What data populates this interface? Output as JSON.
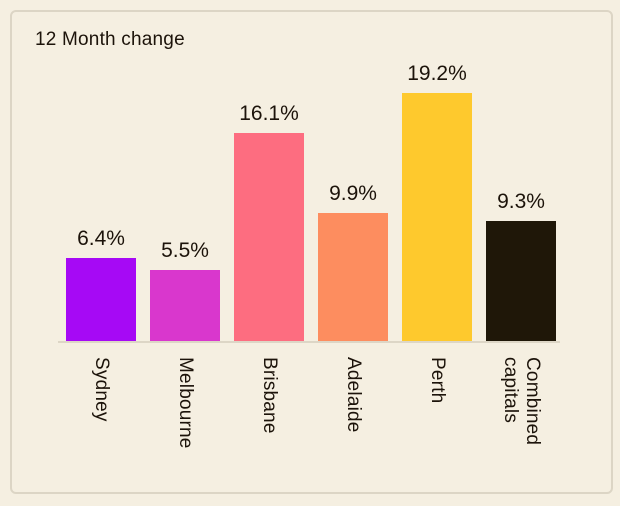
{
  "chart_data": {
    "type": "bar",
    "title": "12 Month change",
    "categories": [
      "Sydney",
      "Melbourne",
      "Brisbane",
      "Adelaide",
      "Perth",
      "Combined capitals"
    ],
    "values": [
      6.4,
      5.5,
      16.1,
      9.9,
      19.2,
      9.3
    ],
    "value_labels": [
      "6.4%",
      "5.5%",
      "16.1%",
      "9.9%",
      "19.2%",
      "9.3%"
    ],
    "bar_colors": [
      "#a609f5",
      "#d937cd",
      "#fd6d80",
      "#fd8d5f",
      "#fec92d",
      "#1f1708"
    ],
    "xlabel": "",
    "ylabel": "",
    "ylim": [
      0,
      20
    ],
    "grid": "off",
    "legend": "none",
    "value_label_position": "above-bar",
    "category_label_rotation": 90,
    "colors": {
      "background": "#f5efe1",
      "card_border": "#dcd5c5",
      "axis_line": "#ddd6c6",
      "text": "#1c130a"
    }
  }
}
